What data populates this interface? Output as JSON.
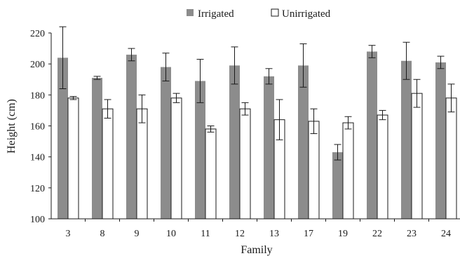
{
  "chart_data": {
    "type": "bar",
    "xlabel": "Family",
    "ylabel": "Height (cm)",
    "ylim": [
      100,
      220
    ],
    "yticks": [
      100,
      120,
      140,
      160,
      180,
      200,
      220
    ],
    "grid": false,
    "legend_position": "top",
    "categories": [
      "3",
      "8",
      "9",
      "10",
      "11",
      "12",
      "13",
      "17",
      "19",
      "22",
      "23",
      "24"
    ],
    "error_bars": true,
    "series": [
      {
        "name": "Irrigated",
        "color": "#8c8c8c",
        "values": [
          204,
          191,
          206,
          198,
          189,
          199,
          192,
          199,
          143,
          208,
          202,
          201
        ],
        "errors": [
          20,
          1,
          4,
          9,
          14,
          12,
          5,
          14,
          5,
          4,
          12,
          4
        ]
      },
      {
        "name": "Unirrigated",
        "color": "#ffffff",
        "values": [
          178,
          171,
          171,
          178,
          158,
          171,
          164,
          163,
          162,
          167,
          181,
          178
        ],
        "errors": [
          1,
          6,
          9,
          3,
          2,
          4,
          13,
          8,
          4,
          3,
          9,
          9
        ]
      }
    ]
  }
}
